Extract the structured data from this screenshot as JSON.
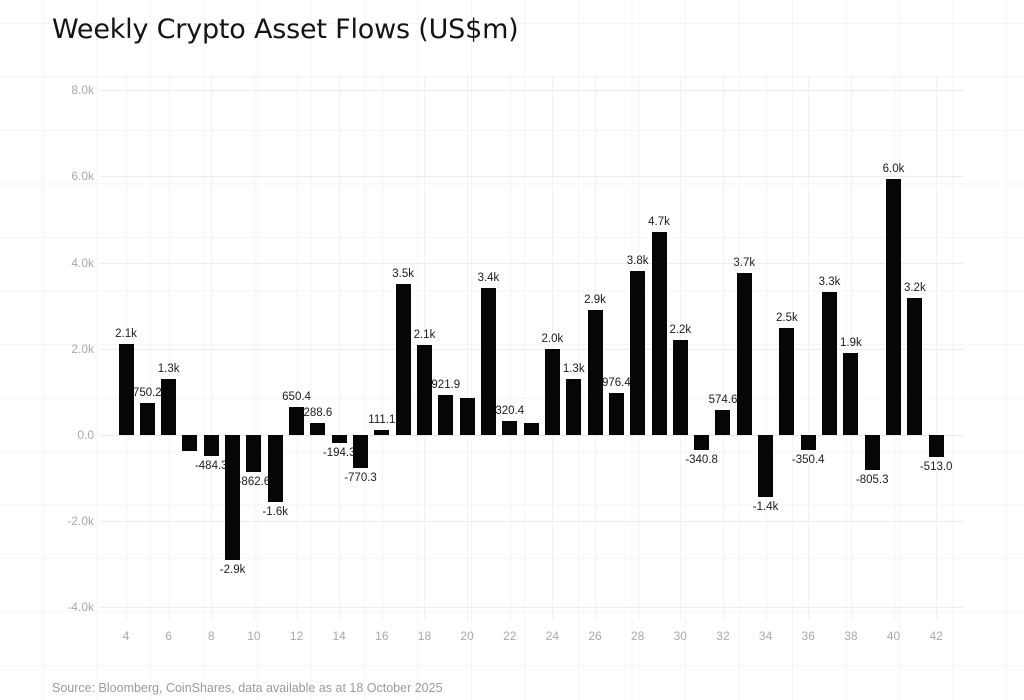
{
  "page": {
    "title": "Weekly Crypto Asset Flows (US$m)",
    "source": "Source: Bloomberg, CoinShares, data available as at 18 October 2025"
  },
  "chart_data": {
    "type": "bar",
    "title": "Weekly Crypto Asset Flows (US$m)",
    "xlabel": "",
    "ylabel": "",
    "legend": false,
    "grid": true,
    "bar_color": "#060606",
    "x": [
      4,
      5,
      6,
      7,
      8,
      9,
      10,
      11,
      12,
      13,
      14,
      15,
      16,
      17,
      18,
      19,
      20,
      21,
      22,
      23,
      24,
      25,
      26,
      27,
      28,
      29,
      30,
      31,
      32,
      33,
      34,
      35,
      36,
      37,
      38,
      39,
      40,
      41,
      42
    ],
    "values": [
      2120,
      750.2,
      1300,
      -370,
      -484.3,
      -2900,
      -862.6,
      -1560,
      650.4,
      288.6,
      -194.3,
      -770.3,
      111.1,
      3500,
      2080,
      921.9,
      860,
      3400,
      320.4,
      270,
      2000,
      1300,
      2900,
      976.4,
      3800,
      4700,
      2200,
      -340.8,
      574.6,
      3750,
      -1450,
      2480,
      -350.4,
      3320,
      1900,
      -805.3,
      5950,
      3180,
      -513.0
    ],
    "labels": [
      "2.1k",
      "750.2",
      "1.3k",
      null,
      "-484.3",
      "-2.9k",
      "-862.6",
      "-1.6k",
      "650.4",
      "288.6",
      "-194.3",
      "-770.3",
      "111.1",
      "3.5k",
      "2.1k",
      "921.9",
      null,
      "3.4k",
      "320.4",
      null,
      "2.0k",
      "1.3k",
      "2.9k",
      "976.4",
      "3.8k",
      "4.7k",
      "2.2k",
      "-340.8",
      "574.6",
      "3.7k",
      "-1.4k",
      "2.5k",
      "-350.4",
      "3.3k",
      "1.9k",
      "-805.3",
      "6.0k",
      "3.2k",
      "-513.0"
    ],
    "x_ticks": [
      4,
      6,
      8,
      10,
      12,
      14,
      16,
      18,
      20,
      22,
      24,
      26,
      28,
      30,
      32,
      34,
      36,
      38,
      40,
      42
    ],
    "y_ticks": [
      "8.0k",
      "6.0k",
      "4.0k",
      "2.0k",
      "0.0",
      "-2.0k",
      "-4.0k"
    ],
    "y_tick_values": [
      8000,
      6000,
      4000,
      2000,
      0,
      -2000,
      -4000
    ],
    "ylim": [
      -4300,
      8350
    ],
    "xlim": [
      2.8,
      43.2
    ]
  },
  "colors": {
    "bar": "#060606",
    "axis_text": "#a9a9a9",
    "value_text": "#1c1c1c",
    "gridline": "#ececec",
    "background": "#ffffff"
  }
}
